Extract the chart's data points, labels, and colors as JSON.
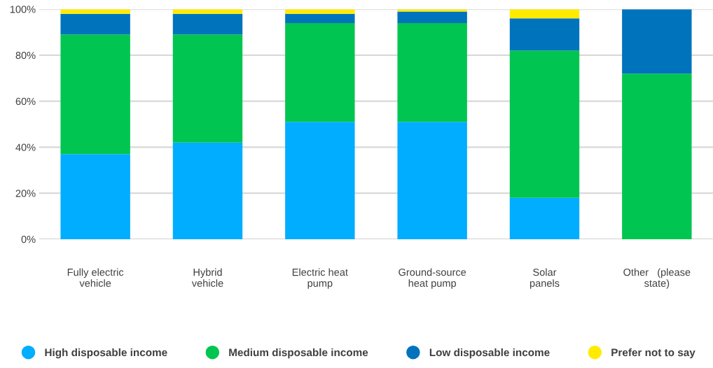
{
  "chart_data": {
    "type": "bar",
    "stacked": true,
    "categories": [
      "Fully electric\nvehicle",
      "Hybrid\nvehicle",
      "Electric heat\npump",
      "Ground-source\nheat pump",
      "Solar\npanels",
      "Other   (please\nstate)"
    ],
    "series": [
      {
        "name": "High disposable income",
        "color": "#00adff",
        "values": [
          37,
          42,
          51,
          51,
          18,
          0
        ]
      },
      {
        "name": "Medium disposable income",
        "color": "#00c550",
        "values": [
          52,
          47,
          43,
          43,
          64,
          72
        ]
      },
      {
        "name": "Low disposable income",
        "color": "#0073bd",
        "values": [
          9,
          9,
          4,
          5,
          14,
          28
        ]
      },
      {
        "name": "Prefer not to say",
        "color": "#ffeb00",
        "values": [
          2,
          2,
          2,
          1,
          4,
          0
        ]
      }
    ],
    "ylim": [
      0,
      100
    ],
    "yticks": [
      {
        "value": 0,
        "label": "0%"
      },
      {
        "value": 20,
        "label": "20%"
      },
      {
        "value": 40,
        "label": "40%"
      },
      {
        "value": 60,
        "label": "60%"
      },
      {
        "value": 80,
        "label": "80%"
      },
      {
        "value": 100,
        "label": "100%"
      }
    ],
    "grid": "y",
    "legend": "bottom",
    "marker": "circle"
  }
}
